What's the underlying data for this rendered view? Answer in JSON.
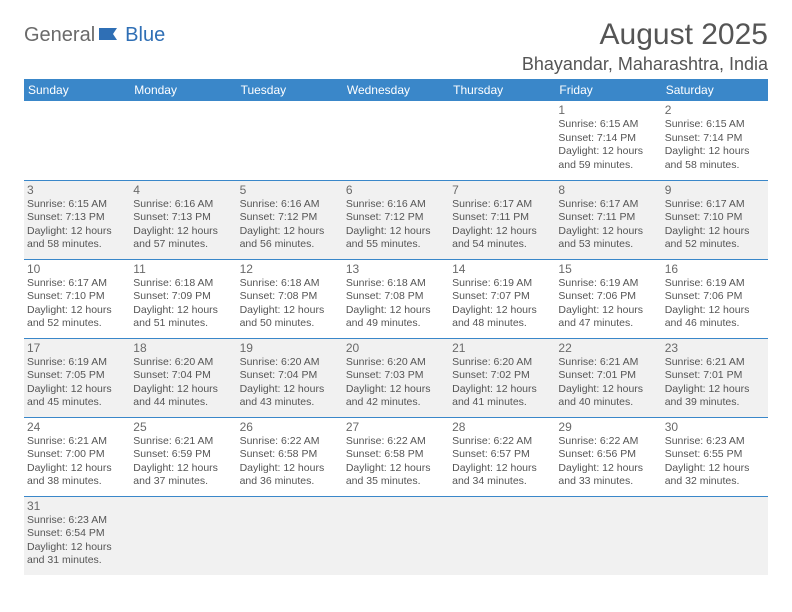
{
  "logo": {
    "part1": "General",
    "part2": "Blue"
  },
  "title": "August 2025",
  "location": "Bhayandar, Maharashtra, India",
  "colors": {
    "header_bg": "#3a87c9",
    "header_text": "#ffffff",
    "alt_bg": "#f1f1f1",
    "border": "#3a87c9",
    "logo_gray": "#6a6a6a",
    "logo_blue": "#2f6fb5",
    "text": "#555555"
  },
  "days_of_week": [
    "Sunday",
    "Monday",
    "Tuesday",
    "Wednesday",
    "Thursday",
    "Friday",
    "Saturday"
  ],
  "weeks": [
    [
      null,
      null,
      null,
      null,
      null,
      {
        "n": "1",
        "sunrise": "6:15 AM",
        "sunset": "7:14 PM",
        "daylight": "12 hours and 59 minutes."
      },
      {
        "n": "2",
        "sunrise": "6:15 AM",
        "sunset": "7:14 PM",
        "daylight": "12 hours and 58 minutes."
      }
    ],
    [
      {
        "n": "3",
        "sunrise": "6:15 AM",
        "sunset": "7:13 PM",
        "daylight": "12 hours and 58 minutes."
      },
      {
        "n": "4",
        "sunrise": "6:16 AM",
        "sunset": "7:13 PM",
        "daylight": "12 hours and 57 minutes."
      },
      {
        "n": "5",
        "sunrise": "6:16 AM",
        "sunset": "7:12 PM",
        "daylight": "12 hours and 56 minutes."
      },
      {
        "n": "6",
        "sunrise": "6:16 AM",
        "sunset": "7:12 PM",
        "daylight": "12 hours and 55 minutes."
      },
      {
        "n": "7",
        "sunrise": "6:17 AM",
        "sunset": "7:11 PM",
        "daylight": "12 hours and 54 minutes."
      },
      {
        "n": "8",
        "sunrise": "6:17 AM",
        "sunset": "7:11 PM",
        "daylight": "12 hours and 53 minutes."
      },
      {
        "n": "9",
        "sunrise": "6:17 AM",
        "sunset": "7:10 PM",
        "daylight": "12 hours and 52 minutes."
      }
    ],
    [
      {
        "n": "10",
        "sunrise": "6:17 AM",
        "sunset": "7:10 PM",
        "daylight": "12 hours and 52 minutes."
      },
      {
        "n": "11",
        "sunrise": "6:18 AM",
        "sunset": "7:09 PM",
        "daylight": "12 hours and 51 minutes."
      },
      {
        "n": "12",
        "sunrise": "6:18 AM",
        "sunset": "7:08 PM",
        "daylight": "12 hours and 50 minutes."
      },
      {
        "n": "13",
        "sunrise": "6:18 AM",
        "sunset": "7:08 PM",
        "daylight": "12 hours and 49 minutes."
      },
      {
        "n": "14",
        "sunrise": "6:19 AM",
        "sunset": "7:07 PM",
        "daylight": "12 hours and 48 minutes."
      },
      {
        "n": "15",
        "sunrise": "6:19 AM",
        "sunset": "7:06 PM",
        "daylight": "12 hours and 47 minutes."
      },
      {
        "n": "16",
        "sunrise": "6:19 AM",
        "sunset": "7:06 PM",
        "daylight": "12 hours and 46 minutes."
      }
    ],
    [
      {
        "n": "17",
        "sunrise": "6:19 AM",
        "sunset": "7:05 PM",
        "daylight": "12 hours and 45 minutes."
      },
      {
        "n": "18",
        "sunrise": "6:20 AM",
        "sunset": "7:04 PM",
        "daylight": "12 hours and 44 minutes."
      },
      {
        "n": "19",
        "sunrise": "6:20 AM",
        "sunset": "7:04 PM",
        "daylight": "12 hours and 43 minutes."
      },
      {
        "n": "20",
        "sunrise": "6:20 AM",
        "sunset": "7:03 PM",
        "daylight": "12 hours and 42 minutes."
      },
      {
        "n": "21",
        "sunrise": "6:20 AM",
        "sunset": "7:02 PM",
        "daylight": "12 hours and 41 minutes."
      },
      {
        "n": "22",
        "sunrise": "6:21 AM",
        "sunset": "7:01 PM",
        "daylight": "12 hours and 40 minutes."
      },
      {
        "n": "23",
        "sunrise": "6:21 AM",
        "sunset": "7:01 PM",
        "daylight": "12 hours and 39 minutes."
      }
    ],
    [
      {
        "n": "24",
        "sunrise": "6:21 AM",
        "sunset": "7:00 PM",
        "daylight": "12 hours and 38 minutes."
      },
      {
        "n": "25",
        "sunrise": "6:21 AM",
        "sunset": "6:59 PM",
        "daylight": "12 hours and 37 minutes."
      },
      {
        "n": "26",
        "sunrise": "6:22 AM",
        "sunset": "6:58 PM",
        "daylight": "12 hours and 36 minutes."
      },
      {
        "n": "27",
        "sunrise": "6:22 AM",
        "sunset": "6:58 PM",
        "daylight": "12 hours and 35 minutes."
      },
      {
        "n": "28",
        "sunrise": "6:22 AM",
        "sunset": "6:57 PM",
        "daylight": "12 hours and 34 minutes."
      },
      {
        "n": "29",
        "sunrise": "6:22 AM",
        "sunset": "6:56 PM",
        "daylight": "12 hours and 33 minutes."
      },
      {
        "n": "30",
        "sunrise": "6:23 AM",
        "sunset": "6:55 PM",
        "daylight": "12 hours and 32 minutes."
      }
    ],
    [
      {
        "n": "31",
        "sunrise": "6:23 AM",
        "sunset": "6:54 PM",
        "daylight": "12 hours and 31 minutes."
      },
      null,
      null,
      null,
      null,
      null,
      null
    ]
  ],
  "labels": {
    "sunrise": "Sunrise: ",
    "sunset": "Sunset: ",
    "daylight": "Daylight: "
  }
}
